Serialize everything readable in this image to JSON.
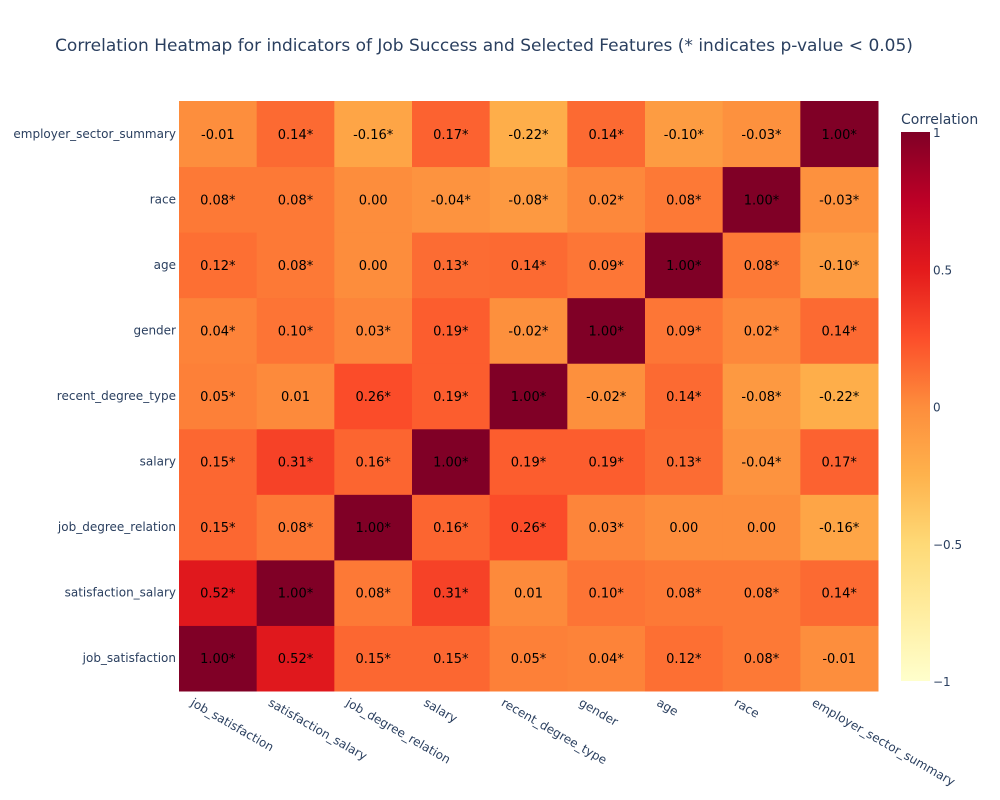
{
  "chart_data": {
    "type": "heatmap",
    "title": "Correlation Heatmap for indicators of Job Success and Selected Features (* indicates p-value < 0.05)",
    "x_categories": [
      "job_satisfaction",
      "satisfaction_salary",
      "job_degree_relation",
      "salary",
      "recent_degree_type",
      "gender",
      "age",
      "race",
      "employer_sector_summary"
    ],
    "y_categories": [
      "job_satisfaction",
      "satisfaction_salary",
      "job_degree_relation",
      "salary",
      "recent_degree_type",
      "gender",
      "age",
      "race",
      "employer_sector_summary"
    ],
    "z": [
      [
        1.0,
        0.52,
        0.15,
        0.15,
        0.05,
        0.04,
        0.12,
        0.08,
        -0.01
      ],
      [
        0.52,
        1.0,
        0.08,
        0.31,
        0.01,
        0.1,
        0.08,
        0.08,
        0.14
      ],
      [
        0.15,
        0.08,
        1.0,
        0.16,
        0.26,
        0.03,
        0.0,
        0.0,
        -0.16
      ],
      [
        0.15,
        0.31,
        0.16,
        1.0,
        0.19,
        0.19,
        0.13,
        -0.04,
        0.17
      ],
      [
        0.05,
        0.01,
        0.26,
        0.19,
        1.0,
        -0.02,
        0.14,
        -0.08,
        -0.22
      ],
      [
        0.04,
        0.1,
        0.03,
        0.19,
        -0.02,
        1.0,
        0.09,
        0.02,
        0.14
      ],
      [
        0.12,
        0.08,
        0.0,
        0.13,
        0.14,
        0.09,
        1.0,
        0.08,
        -0.1
      ],
      [
        0.08,
        0.08,
        0.0,
        -0.04,
        -0.08,
        0.02,
        0.08,
        1.0,
        -0.03
      ],
      [
        -0.01,
        0.14,
        -0.16,
        0.17,
        -0.22,
        0.14,
        -0.1,
        -0.03,
        1.0
      ]
    ],
    "cell_text": [
      [
        "1.00*",
        "0.52*",
        "0.15*",
        "0.15*",
        "0.05*",
        "0.04*",
        "0.12*",
        "0.08*",
        "-0.01"
      ],
      [
        "0.52*",
        "1.00*",
        "0.08*",
        "0.31*",
        "0.01",
        "0.10*",
        "0.08*",
        "0.08*",
        "0.14*"
      ],
      [
        "0.15*",
        "0.08*",
        "1.00*",
        "0.16*",
        "0.26*",
        "0.03*",
        "0.00",
        "0.00",
        "-0.16*"
      ],
      [
        "0.15*",
        "0.31*",
        "0.16*",
        "1.00*",
        "0.19*",
        "0.19*",
        "0.13*",
        "-0.04*",
        "0.17*"
      ],
      [
        "0.05*",
        "0.01",
        "0.26*",
        "0.19*",
        "1.00*",
        "-0.02*",
        "0.14*",
        "-0.08*",
        "-0.22*"
      ],
      [
        "0.04*",
        "0.10*",
        "0.03*",
        "0.19*",
        "-0.02*",
        "1.00*",
        "0.09*",
        "0.02*",
        "0.14*"
      ],
      [
        "0.12*",
        "0.08*",
        "0.00",
        "0.13*",
        "0.14*",
        "0.09*",
        "1.00*",
        "0.08*",
        "-0.10*"
      ],
      [
        "0.08*",
        "0.08*",
        "0.00",
        "-0.04*",
        "-0.08*",
        "0.02*",
        "0.08*",
        "1.00*",
        "-0.03*"
      ],
      [
        "-0.01",
        "0.14*",
        "-0.16*",
        "0.17*",
        "-0.22*",
        "0.14*",
        "-0.10*",
        "-0.03*",
        "1.00*"
      ]
    ],
    "zlim": [
      -1,
      1
    ],
    "colorscale": [
      "#ffffcc",
      "#ffeda0",
      "#fed976",
      "#feb24c",
      "#fd8d3c",
      "#fc4e2a",
      "#e31a1c",
      "#bd0026",
      "#800026"
    ],
    "colorbar": {
      "title": "Correlation",
      "tickvals": [
        1,
        0.5,
        0,
        -0.5,
        -1
      ],
      "ticktext": [
        "1",
        "0.5",
        "0",
        "−0.5",
        "−1"
      ]
    },
    "colors": {
      "title": "#2a3f5f",
      "axis_text": "#2a3f5f",
      "cell_text": "#000000"
    }
  }
}
